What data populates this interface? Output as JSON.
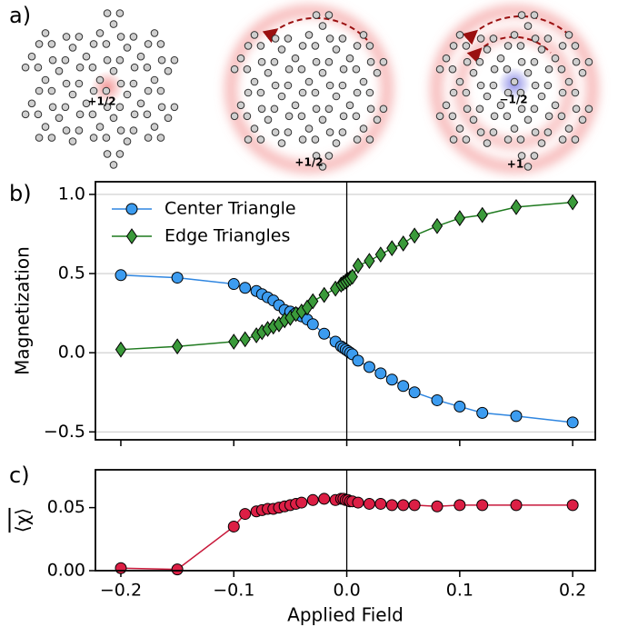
{
  "panel_labels": [
    "a)",
    "b)",
    "c)"
  ],
  "diagram": {
    "labels": [
      {
        "text": "+1/2",
        "color": "#d81b1b"
      },
      {
        "text": "+1/2",
        "color": "#d81b1b"
      },
      {
        "text": "−1/2",
        "color": "#2a2aa8"
      },
      {
        "text": "+1",
        "color": "#d81b1b"
      }
    ]
  },
  "chart_data": [
    {
      "type": "line",
      "ylabel": "Magnetization",
      "x": [
        -0.2,
        -0.15,
        -0.1,
        -0.09,
        -0.08,
        -0.075,
        -0.07,
        -0.065,
        -0.06,
        -0.055,
        -0.05,
        -0.045,
        -0.04,
        -0.035,
        -0.03,
        -0.02,
        -0.01,
        -0.005,
        -0.003,
        -0.001,
        0.001,
        0.003,
        0.005,
        0.01,
        0.02,
        0.03,
        0.04,
        0.05,
        0.06,
        0.08,
        0.1,
        0.12,
        0.15,
        0.2
      ],
      "series": [
        {
          "name": "Center Triangle",
          "color": "#2f86e0",
          "marker_color": "#3c9cf0",
          "marker": "circle",
          "values": [
            0.49,
            0.474,
            0.434,
            0.41,
            0.39,
            0.37,
            0.35,
            0.33,
            0.3,
            0.27,
            0.26,
            0.25,
            0.23,
            0.21,
            0.18,
            0.12,
            0.07,
            0.04,
            0.03,
            0.02,
            0.01,
            0.0,
            -0.01,
            -0.05,
            -0.09,
            -0.13,
            -0.17,
            -0.21,
            -0.25,
            -0.3,
            -0.34,
            -0.38,
            -0.4,
            -0.44
          ]
        },
        {
          "name": "Edge Triangles",
          "color": "#1f7a1f",
          "marker_color": "#3a9a3a",
          "marker": "diamond",
          "values": [
            0.02,
            0.04,
            0.07,
            0.085,
            0.11,
            0.13,
            0.15,
            0.165,
            0.18,
            0.205,
            0.22,
            0.245,
            0.26,
            0.285,
            0.325,
            0.365,
            0.405,
            0.43,
            0.44,
            0.45,
            0.46,
            0.47,
            0.48,
            0.55,
            0.58,
            0.62,
            0.66,
            0.69,
            0.74,
            0.8,
            0.85,
            0.87,
            0.92,
            0.95
          ]
        }
      ],
      "xlim": [
        -0.2225,
        0.22
      ],
      "ylim": [
        -0.55,
        1.08
      ],
      "xticks": [
        {
          "value": -0.2,
          "label": "−0.2"
        },
        {
          "value": -0.1,
          "label": "−0.1"
        },
        {
          "value": 0,
          "label": "0.0"
        },
        0.1,
        0.2
      ],
      "show_xtick_labels": false,
      "yticks": [
        {
          "value": -0.5,
          "label": "−0.5"
        },
        {
          "value": 0,
          "label": "0.0"
        },
        0.5,
        {
          "value": 1.0,
          "label": "1.0"
        }
      ],
      "grid": true,
      "axvline": 0,
      "legend": "upper left"
    },
    {
      "type": "line",
      "ylabel": "⟨χ⟩",
      "xlabel": "Applied Field",
      "x": [
        -0.2,
        -0.15,
        -0.1,
        -0.09,
        -0.08,
        -0.075,
        -0.07,
        -0.065,
        -0.06,
        -0.055,
        -0.05,
        -0.045,
        -0.04,
        -0.03,
        -0.02,
        -0.01,
        -0.005,
        -0.003,
        -0.001,
        0.001,
        0.003,
        0.005,
        0.01,
        0.02,
        0.03,
        0.04,
        0.05,
        0.06,
        0.08,
        0.1,
        0.12,
        0.15,
        0.2
      ],
      "series": [
        {
          "color": "#c8183a",
          "marker_color": "#dc1f45",
          "marker": "circle",
          "values": [
            0.002,
            0.001,
            0.035,
            0.045,
            0.047,
            0.048,
            0.049,
            0.049,
            0.05,
            0.051,
            0.052,
            0.053,
            0.054,
            0.056,
            0.057,
            0.056,
            0.057,
            0.057,
            0.056,
            0.056,
            0.055,
            0.055,
            0.054,
            0.053,
            0.053,
            0.052,
            0.052,
            0.052,
            0.051,
            0.052,
            0.052,
            0.052,
            0.052
          ]
        }
      ],
      "xlim": [
        -0.2225,
        0.22
      ],
      "ylim": [
        0,
        0.08
      ],
      "xticks": [
        {
          "value": -0.2,
          "label": "−0.2"
        },
        {
          "value": -0.1,
          "label": "−0.1"
        },
        {
          "value": 0,
          "label": "0.0"
        },
        0.1,
        0.2
      ],
      "show_xtick_labels": true,
      "yticks": [
        {
          "value": 0,
          "label": "0.00"
        },
        {
          "value": 0.05,
          "label": "0.05"
        }
      ],
      "grid": false,
      "axvline": 0
    }
  ]
}
